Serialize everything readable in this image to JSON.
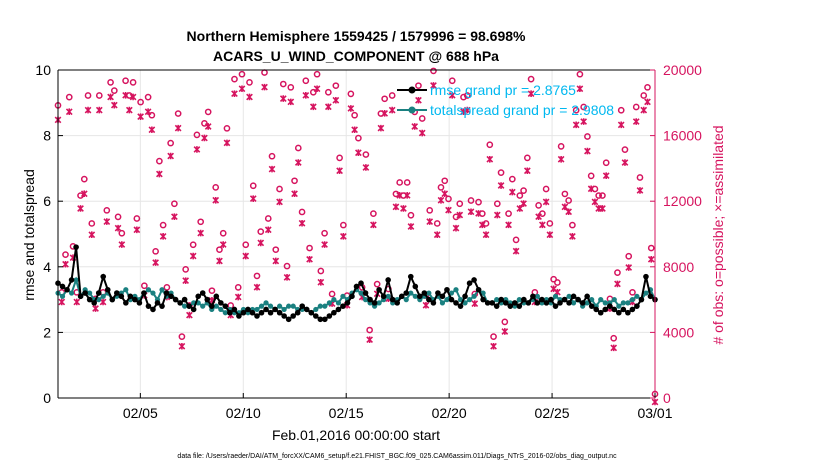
{
  "colors": {
    "rmse": "#000000",
    "spread": "#1a8080",
    "obs": "#d6145f",
    "legend_text": "#00b8f0",
    "grid": "#e6e6e6"
  },
  "footer": "data file: /Users/raeder/DAI/ATM_forcXX/CAM6_setup/f.e21.FHIST_BGC.f09_025.CAM6assim.011/Diags_NTrS_2016-02/obs_diag_output.nc",
  "chart_data": {
    "type": "line",
    "title": [
      "Northern Hemisphere 1559425 / 1579996 = 98.698%",
      "ACARS_U_WIND_COMPONENT @ 688 hPa"
    ],
    "xlabel": "Feb.01,2016 00:00:00 start",
    "ylabel": "rmse and totalspread",
    "y2label": "# of obs: o=possible; ×=assimilated",
    "xlim": [
      1,
      30
    ],
    "ylim": [
      0,
      10
    ],
    "y2lim": [
      0,
      20000
    ],
    "x_ticks": [
      5,
      10,
      15,
      20,
      25,
      30
    ],
    "x_tick_labels": [
      "02/05",
      "02/10",
      "02/15",
      "02/20",
      "02/25",
      "03/01"
    ],
    "y_ticks": [
      0,
      2,
      4,
      6,
      8,
      10
    ],
    "y_tick_labels": [
      "0",
      "2",
      "4",
      "6",
      "8",
      "10"
    ],
    "y2_ticks": [
      0,
      4000,
      8000,
      12000,
      16000,
      20000
    ],
    "y2_tick_labels": [
      "0",
      "4000",
      "8000",
      "12000",
      "16000",
      "20000"
    ],
    "grid": true,
    "legend_position": "top-right",
    "series": [
      {
        "name": "rmse",
        "legend": "rmse grand pr = 2.8765",
        "axis": "left",
        "values": [
          3.5,
          3.4,
          3.3,
          3.6,
          4.6,
          3.1,
          3.2,
          3.0,
          2.9,
          3.2,
          3.7,
          3.3,
          3.0,
          3.2,
          3.1,
          2.9,
          3.1,
          3.0,
          2.9,
          3.2,
          2.8,
          2.7,
          2.9,
          2.8,
          3.2,
          3.1,
          3.0,
          2.9,
          3.0,
          2.8,
          2.7,
          3.1,
          3.2,
          3.0,
          2.8,
          3.1,
          2.9,
          2.8,
          2.6,
          2.7,
          2.5,
          2.6,
          2.7,
          2.6,
          2.5,
          2.6,
          2.7,
          2.6,
          2.7,
          2.6,
          2.5,
          2.4,
          2.5,
          2.6,
          2.8,
          2.7,
          2.6,
          2.5,
          2.4,
          2.4,
          2.5,
          2.6,
          2.7,
          2.8,
          2.9,
          3.1,
          3.4,
          3.5,
          3.2,
          3.0,
          2.9,
          3.3,
          3.1,
          3.6,
          3.0,
          2.9,
          3.1,
          3.2,
          3.7,
          3.4,
          3.1,
          3.2,
          3.0,
          2.9,
          3.2,
          3.1,
          3.3,
          3.0,
          2.9,
          2.8,
          3.1,
          3.5,
          3.6,
          3.3,
          3.0,
          2.9,
          2.9,
          2.8,
          3.0,
          2.9,
          2.8,
          2.9,
          2.8,
          3.0,
          2.9,
          3.1,
          2.9,
          3.0,
          2.9,
          3.0,
          2.8,
          2.9,
          3.0,
          2.9,
          3.1,
          3.0,
          2.9,
          3.1,
          2.8,
          2.7,
          2.6,
          2.7,
          2.8,
          2.7,
          2.6,
          2.7,
          2.6,
          2.7,
          2.8,
          3.0,
          3.7,
          3.1,
          3.0
        ]
      },
      {
        "name": "totalspread",
        "legend": "totalspread grand pr = 2.9808",
        "axis": "left",
        "values": [
          3.2,
          3.1,
          3.3,
          3.2,
          3.6,
          3.1,
          3.3,
          3.2,
          3.0,
          3.0,
          3.1,
          3.2,
          3.0,
          3.1,
          3.2,
          3.3,
          3.0,
          3.1,
          3.0,
          3.2,
          3.3,
          3.2,
          3.0,
          3.3,
          3.1,
          3.2,
          3.0,
          2.9,
          2.8,
          2.8,
          2.9,
          2.9,
          2.8,
          2.9,
          2.7,
          2.8,
          2.7,
          2.6,
          2.7,
          2.6,
          2.6,
          2.7,
          2.6,
          2.7,
          2.7,
          2.8,
          2.9,
          2.8,
          2.7,
          2.8,
          2.7,
          2.8,
          2.8,
          2.7,
          2.7,
          2.7,
          2.6,
          2.7,
          2.8,
          2.8,
          2.9,
          3.0,
          2.9,
          3.1,
          3.0,
          3.2,
          3.3,
          3.2,
          3.0,
          2.9,
          2.8,
          2.9,
          3.0,
          3.1,
          2.9,
          3.0,
          3.1,
          3.0,
          3.2,
          3.1,
          3.0,
          3.1,
          3.2,
          3.0,
          3.1,
          2.9,
          3.0,
          3.2,
          3.3,
          3.0,
          2.9,
          3.0,
          3.1,
          3.3,
          3.2,
          2.9,
          2.9,
          3.0,
          2.9,
          3.0,
          2.9,
          2.8,
          3.0,
          2.9,
          2.9,
          3.0,
          3.1,
          2.9,
          3.0,
          2.9,
          3.1,
          3.0,
          3.0,
          3.1,
          2.9,
          3.0,
          2.8,
          2.9,
          3.0,
          2.8,
          3.0,
          2.9,
          2.9,
          3.0,
          2.8,
          2.9,
          2.9,
          3.0,
          3.1,
          3.0,
          3.2,
          3.3,
          3.0
        ]
      },
      {
        "name": "possible",
        "axis": "right",
        "values": [
          17600,
          6200,
          8500,
          18100,
          9000,
          6200,
          12100,
          13100,
          18200,
          10400,
          5800,
          18200,
          6200,
          11200,
          19000,
          18500,
          10800,
          9800,
          19100,
          18200,
          19000,
          10700,
          17800,
          6600,
          18100,
          17000,
          8700,
          14200,
          10300,
          6500,
          15300,
          11600,
          17100,
          3500,
          7600,
          5400,
          9100,
          15800,
          10500,
          16500,
          17200,
          6300,
          12600,
          8800,
          9800,
          16200,
          5400,
          19200,
          6500,
          19500,
          9100,
          19000,
          12700,
          7200,
          9900,
          19600,
          10700,
          14500,
          8800,
          12500,
          18900,
          7800,
          18700,
          13000,
          15000,
          11100,
          19100,
          8900,
          18400,
          19500,
          7500,
          9800,
          18400,
          6100,
          18800,
          14400,
          10300,
          6000,
          18300,
          17000,
          15600,
          6500,
          14600,
          3900,
          11000,
          6700,
          17100,
          18000,
          6400,
          18200,
          12200,
          12900,
          12100,
          12900,
          10900,
          17200,
          18800,
          16800,
          6000,
          11200,
          19700,
          10400,
          12600,
          13000,
          11900,
          19100,
          10800,
          11600,
          18100,
          18200,
          11800,
          6100,
          11700,
          11000,
          10400,
          15200,
          3500,
          11600,
          13500,
          4400,
          11000,
          13100,
          9400,
          12100,
          12400,
          14400,
          19200,
          6200,
          11500,
          11000,
          12500,
          10400,
          7000,
          6800,
          15100,
          12200,
          11800,
          10300,
          17300,
          19500,
          17500,
          15700,
          13300,
          12500,
          12100,
          12100,
          14100,
          5800,
          3400,
          7400,
          17300,
          14900,
          8400,
          6200,
          17500,
          13200,
          18200,
          18700,
          8900,
          0
        ]
      },
      {
        "name": "assimilated",
        "axis": "right",
        "values": [
          17200,
          6100,
          8400,
          17700,
          8800,
          6100,
          11800,
          12700,
          17800,
          10200,
          5700,
          17800,
          6100,
          11000,
          18600,
          18100,
          10600,
          9600,
          18700,
          17800,
          18600,
          10500,
          17400,
          6500,
          17700,
          16600,
          8500,
          13900,
          10100,
          6400,
          15000,
          11300,
          16700,
          3400,
          7400,
          5300,
          8900,
          15400,
          10300,
          16100,
          16800,
          6200,
          12300,
          8600,
          9600,
          15800,
          5300,
          18800,
          6400,
          19100,
          8900,
          18600,
          12400,
          7000,
          9700,
          19200,
          10500,
          14200,
          8600,
          12200,
          18500,
          7600,
          18300,
          12700,
          14600,
          10900,
          18700,
          8700,
          18000,
          19100,
          7300,
          9600,
          18000,
          6000,
          18400,
          14100,
          10100,
          5900,
          17900,
          16600,
          15200,
          6400,
          14300,
          3800,
          10800,
          6600,
          16700,
          17600,
          6300,
          17800,
          11900,
          12600,
          11800,
          12600,
          10700,
          16800,
          18400,
          16400,
          5900,
          11000,
          19300,
          10200,
          12300,
          12700,
          11700,
          18700,
          10600,
          11400,
          17700,
          17800,
          11600,
          6000,
          11500,
          10800,
          10200,
          14800,
          3400,
          11400,
          13200,
          4300,
          10800,
          12800,
          9200,
          11800,
          12100,
          14100,
          18800,
          6100,
          11300,
          10800,
          12200,
          10200,
          6900,
          6700,
          14800,
          11900,
          11600,
          10100,
          16900,
          19100,
          17100,
          15300,
          13000,
          12200,
          11800,
          11800,
          13800,
          5700,
          3300,
          7200,
          16900,
          14600,
          8200,
          6100,
          17100,
          12900,
          17800,
          18300,
          8700,
          0
        ]
      }
    ]
  }
}
